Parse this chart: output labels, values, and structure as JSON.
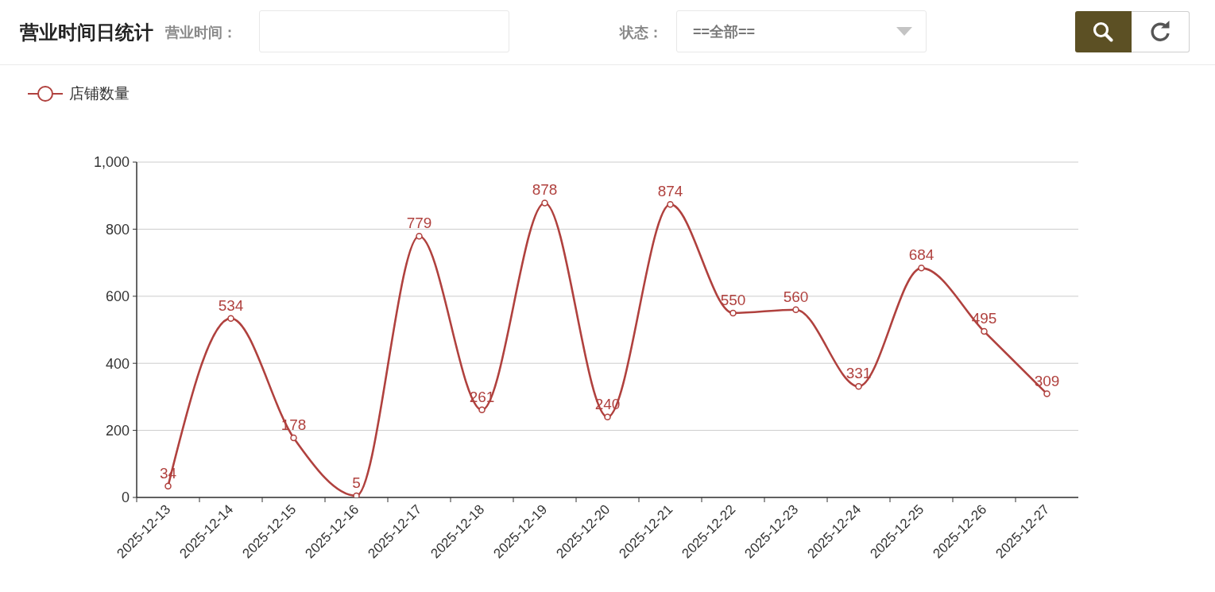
{
  "chart_data": {
    "type": "line",
    "title": "营业时间日统计",
    "annotations": [
      "营业时间：",
      "状态：",
      "==全部=="
    ],
    "categories": [
      "2025-12-13",
      "2025-12-14",
      "2025-12-15",
      "2025-12-16",
      "2025-12-17",
      "2025-12-18",
      "2025-12-19",
      "2025-12-20",
      "2025-12-21",
      "2025-12-22",
      "2025-12-23",
      "2025-12-24",
      "2025-12-25",
      "2025-12-26",
      "2025-12-27"
    ],
    "series": [
      {
        "name": "店铺数量",
        "color": "#b0413e",
        "values": [
          34,
          534,
          178,
          5,
          779,
          261,
          878,
          240,
          874,
          550,
          560,
          331,
          684,
          495,
          309
        ]
      }
    ],
    "ylim": [
      0,
      1000
    ],
    "yticks": [
      0,
      200,
      400,
      600,
      800,
      {
        "value": 1000,
        "label": "1,000"
      }
    ],
    "grid": "y",
    "legend": "top left",
    "marker": "circle",
    "line_style": "solid",
    "data_labels": true
  }
}
